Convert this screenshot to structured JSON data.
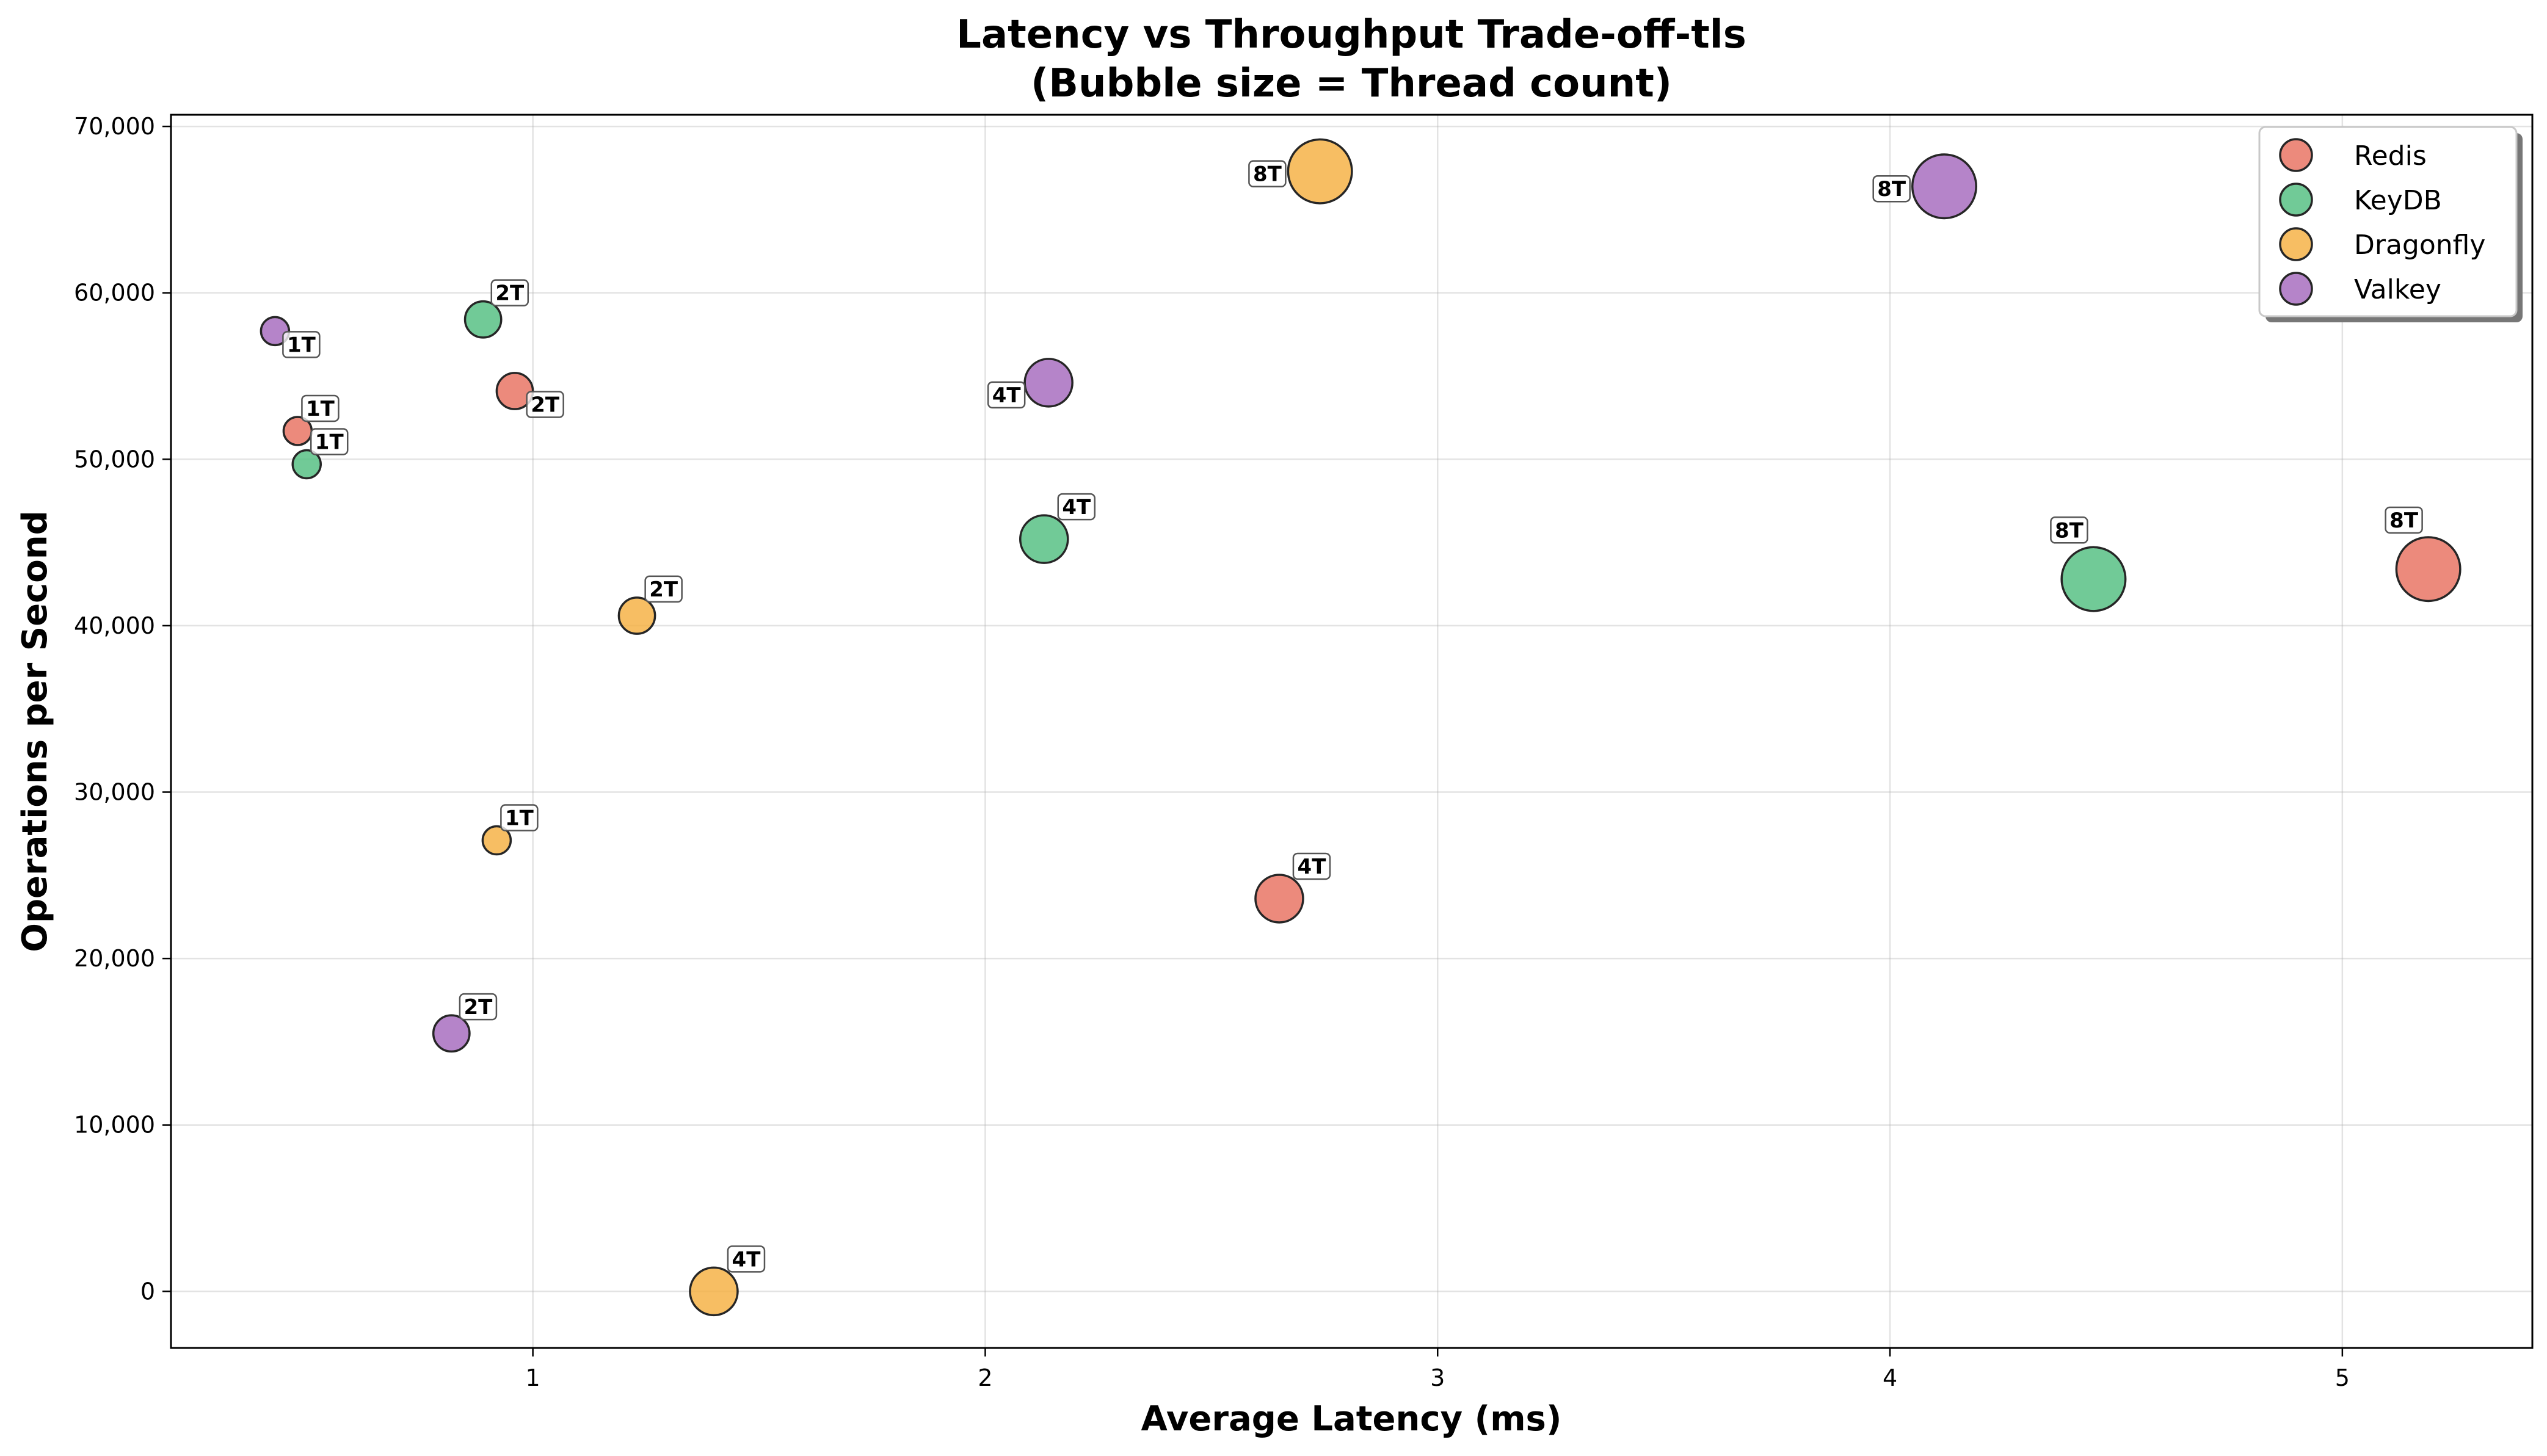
{
  "chart_data": {
    "type": "scatter",
    "title": "Latency vs Throughput Trade-off-tls",
    "subtitle": "(Bubble size = Thread count)",
    "xlabel": "Average Latency (ms)",
    "ylabel": "Operations per Second",
    "xlim": [
      0.2,
      5.42
    ],
    "ylim": [
      -3400,
      70700
    ],
    "x_ticks": [
      1,
      2,
      3,
      4,
      5
    ],
    "x_tick_labels": [
      "1",
      "2",
      "3",
      "4",
      "5"
    ],
    "y_ticks": [
      0,
      10000,
      20000,
      30000,
      40000,
      50000,
      60000,
      70000
    ],
    "y_tick_labels": [
      "0",
      "10,000",
      "20,000",
      "30,000",
      "40,000",
      "50,000",
      "60,000",
      "70,000"
    ],
    "grid": true,
    "legend_position": "top-right",
    "series": [
      {
        "name": "Redis",
        "color": "#e8705f",
        "points": [
          {
            "x": 0.48,
            "y": 51700,
            "threads": 1,
            "label": "1T"
          },
          {
            "x": 0.96,
            "y": 54100,
            "threads": 2,
            "label": "2T"
          },
          {
            "x": 2.65,
            "y": 23600,
            "threads": 4,
            "label": "4T"
          },
          {
            "x": 5.19,
            "y": 43400,
            "threads": 8,
            "label": "8T"
          }
        ]
      },
      {
        "name": "KeyDB",
        "color": "#52be80",
        "points": [
          {
            "x": 0.5,
            "y": 49700,
            "threads": 1,
            "label": "1T"
          },
          {
            "x": 0.89,
            "y": 58400,
            "threads": 2,
            "label": "2T"
          },
          {
            "x": 2.13,
            "y": 45200,
            "threads": 4,
            "label": "4T"
          },
          {
            "x": 4.45,
            "y": 42800,
            "threads": 8,
            "label": "8T"
          }
        ]
      },
      {
        "name": "Dragonfly",
        "color": "#f5b041",
        "points": [
          {
            "x": 0.92,
            "y": 27100,
            "threads": 1,
            "label": "1T"
          },
          {
            "x": 1.23,
            "y": 40600,
            "threads": 2,
            "label": "2T"
          },
          {
            "x": 1.4,
            "y": 0,
            "threads": 4,
            "label": "4T"
          },
          {
            "x": 2.74,
            "y": 67300,
            "threads": 8,
            "label": "8T"
          }
        ]
      },
      {
        "name": "Valkey",
        "color": "#a569bd",
        "points": [
          {
            "x": 0.43,
            "y": 57700,
            "threads": 1,
            "label": "1T"
          },
          {
            "x": 0.82,
            "y": 15500,
            "threads": 2,
            "label": "2T"
          },
          {
            "x": 2.14,
            "y": 54600,
            "threads": 4,
            "label": "4T"
          },
          {
            "x": 4.12,
            "y": 66400,
            "threads": 8,
            "label": "8T"
          }
        ]
      }
    ]
  }
}
